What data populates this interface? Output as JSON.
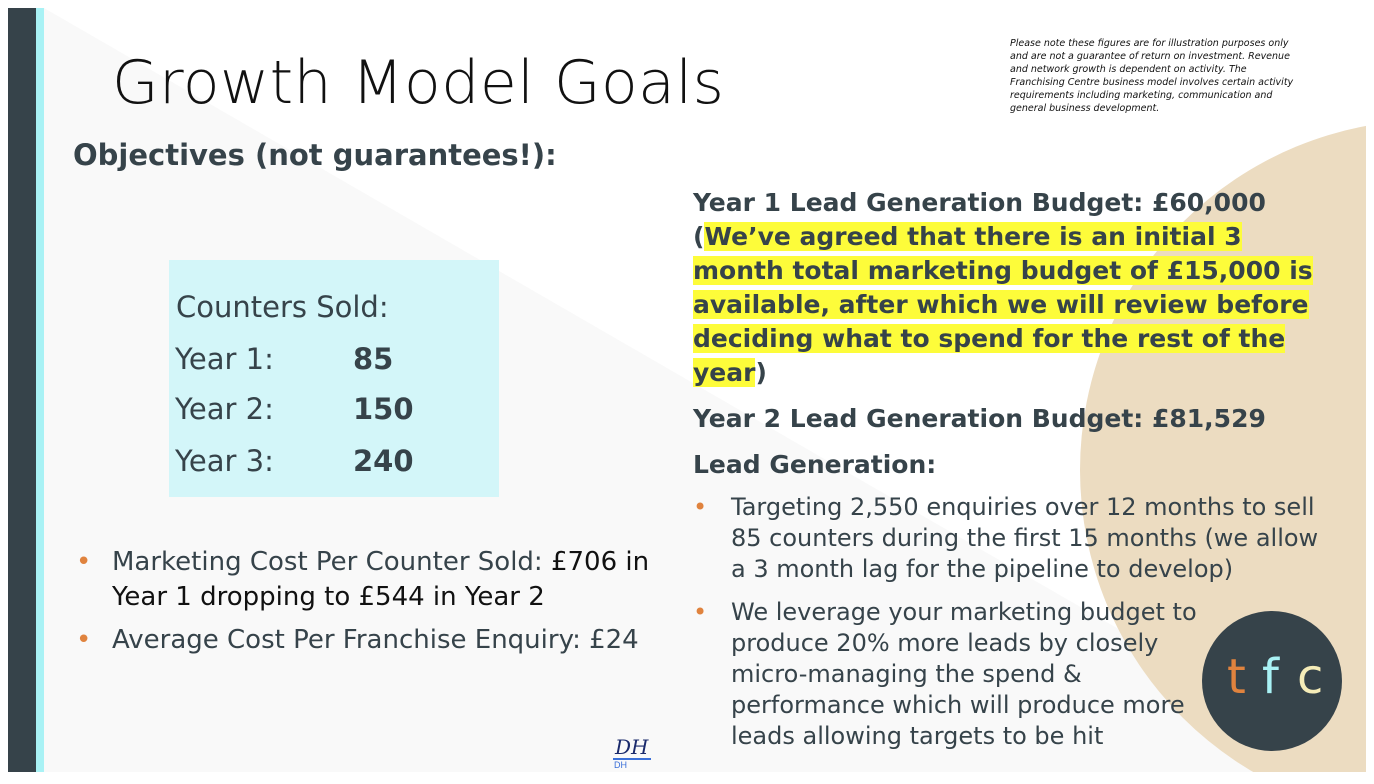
{
  "slide": {
    "title": "Growth Model Goals",
    "disclaimer": "Please note these figures are for illustration purposes only and are not a guarantee of return on investment. Revenue and network growth is dependent on activity. The Franchising Centre business model involves certain activity requirements including marketing, communication and general business development.",
    "subtitle": "Objectives (not guarantees!):"
  },
  "counters": {
    "heading": "Counters Sold:",
    "rows": [
      {
        "label": "Year 1:",
        "value": "85"
      },
      {
        "label": "Year 2:",
        "value": "150"
      },
      {
        "label": "Year 3:",
        "value": "240"
      }
    ]
  },
  "left_bullets": {
    "marketing_cost_prefix": "Marketing Cost Per Counter Sold: ",
    "marketing_cost_rest": "£706 in Year 1 dropping to £544  in Year 2",
    "average_cost": "Average Cost Per Franchise Enquiry: £24"
  },
  "right": {
    "budget1_prefix": "Year 1 Lead Generation Budget: £60,000 (",
    "budget1_highlight": "We’ve agreed that there is an initial 3 month total marketing budget of £15,000 is available, after which we will review before deciding what to spend for the rest of the year",
    "budget1_suffix": ")",
    "budget2": "Year 2 Lead Generation Budget: £81,529",
    "lead_generation_heading": "Lead Generation:",
    "bullets": [
      "Targeting 2,550 enquiries over 12 months to sell 85 counters during the first 15 months (we allow a 3 month lag for the pipeline to develop)",
      "We leverage your marketing budget to produce 20% more leads by closely micro-managing the spend & performance which will produce more leads allowing targets to be hit"
    ]
  },
  "logo": {
    "t": "t",
    "f": "f",
    "c": "c"
  },
  "signature": {
    "script": "DH",
    "initials": "DH"
  },
  "colors": {
    "dark_slate": "#36434a",
    "cyan": "#a9f2f5",
    "light_cyan_box": "#d3f6f9",
    "highlight_yellow": "#fdfc3a",
    "bullet_orange": "#e0833e",
    "beige_circle": "#ecdcc1"
  }
}
